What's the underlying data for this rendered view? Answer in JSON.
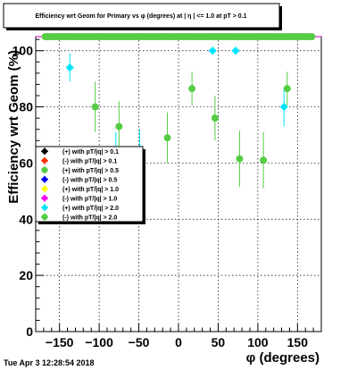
{
  "chart_data": {
    "type": "scatter",
    "title": "Efficiency wrt Geom for Primary vs φ (degrees) at | η | <= 1.0 at pT > 0.1",
    "xlabel": "φ (degrees)",
    "ylabel": "Efficiency wrt Geom (%)",
    "xlim": [
      -180,
      180
    ],
    "ylim": [
      0,
      105
    ],
    "x_ticks": [
      -150,
      -100,
      -50,
      0,
      50,
      100,
      150
    ],
    "y_ticks": [
      0,
      20,
      40,
      60,
      80,
      100
    ],
    "x_tick_labels": [
      "−150",
      "−100",
      "−50",
      "0",
      "50",
      "100",
      "150"
    ],
    "y_tick_labels": [
      "0",
      "20",
      "40",
      "60",
      "80",
      "100"
    ],
    "grid": true,
    "legend_position": "left-middle",
    "reference_line": {
      "y": 105,
      "color": "#cc33cc"
    },
    "series": [
      {
        "name": "(+) with pT/|q| > 0.1",
        "color": "#000000",
        "marker": "diamond",
        "points": []
      },
      {
        "name": "(-) with pT/|q| > 0.1",
        "color": "#ff3300",
        "marker": "diamond",
        "points": []
      },
      {
        "name": "(+) with pT/|q| > 0.5",
        "color": "#55cc44",
        "marker": "circle",
        "points": []
      },
      {
        "name": "(-) with pT/|q| > 0.5",
        "color": "#0000ff",
        "marker": "diamond",
        "points": []
      },
      {
        "name": "(+) with pT/|q| > 1.0",
        "color": "#ffff00",
        "marker": "diamond",
        "points": []
      },
      {
        "name": "(-) with pT/|q| > 1.0",
        "color": "#ff00ff",
        "marker": "diamond",
        "points": []
      },
      {
        "name": "(+) with pT/|q| > 2.0",
        "color": "#00e5ff",
        "marker": "diamond",
        "points": [
          {
            "x": -137,
            "y": 94,
            "err": 5
          },
          {
            "x": -79,
            "y": 64,
            "err": 7
          },
          {
            "x": -49,
            "y": 65,
            "err": 7
          },
          {
            "x": 43,
            "y": 100,
            "err": 0
          },
          {
            "x": 72,
            "y": 100,
            "err": 0
          },
          {
            "x": 133,
            "y": 80,
            "err": 7
          }
        ]
      },
      {
        "name": "(-) with pT/|q| > 2.0",
        "color": "#55cc44",
        "marker": "circle",
        "points": [
          {
            "x": -105,
            "y": 80,
            "err": 9
          },
          {
            "x": -75,
            "y": 73,
            "err": 9
          },
          {
            "x": -14,
            "y": 69,
            "err": 9
          },
          {
            "x": 17,
            "y": 86.5,
            "err": 6
          },
          {
            "x": 46,
            "y": 76,
            "err": 8
          },
          {
            "x": 77,
            "y": 61.5,
            "err": 10
          },
          {
            "x": 107,
            "y": 61,
            "err": 10
          },
          {
            "x": 137,
            "y": 86.5,
            "err": 6
          }
        ]
      }
    ],
    "saturated_band": {
      "y": 105,
      "x_start": -168,
      "x_end": 168,
      "step": 3.5,
      "color": "#55cc44"
    }
  },
  "footer": {
    "timestamp": "Tue Apr  3 12:28:54 2018"
  }
}
